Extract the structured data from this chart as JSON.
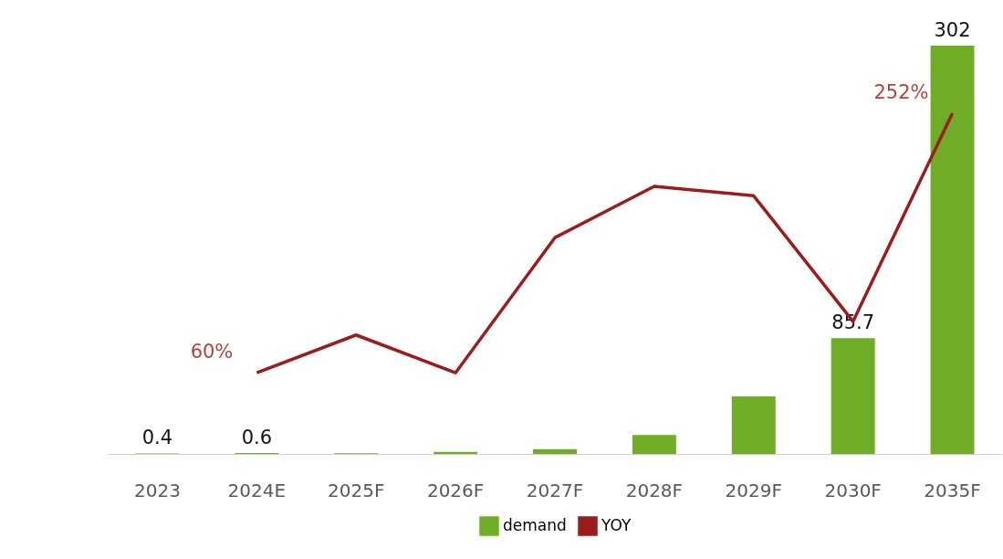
{
  "chart_data": {
    "type": "bar",
    "categories": [
      "2023",
      "2024E",
      "2025F",
      "2026F",
      "2027F",
      "2028F",
      "2029F",
      "2030F",
      "2035F"
    ],
    "series": [
      {
        "name": "demand",
        "color": "#70ad26",
        "values": [
          0.4,
          0.6,
          0.5,
          1.5,
          3.5,
          14,
          42.5,
          85.7,
          302
        ],
        "value_labels": [
          "0.4",
          "0.6",
          null,
          null,
          null,
          null,
          null,
          "85.7",
          "302"
        ]
      },
      {
        "name": "YOY",
        "type": "line",
        "color": "#9b1c1c",
        "values": [
          null,
          60,
          88,
          60,
          160,
          198,
          191,
          98,
          252
        ],
        "value_labels": [
          null,
          "60%",
          null,
          null,
          null,
          null,
          null,
          null,
          "252%"
        ]
      }
    ],
    "legend": "bottom"
  }
}
